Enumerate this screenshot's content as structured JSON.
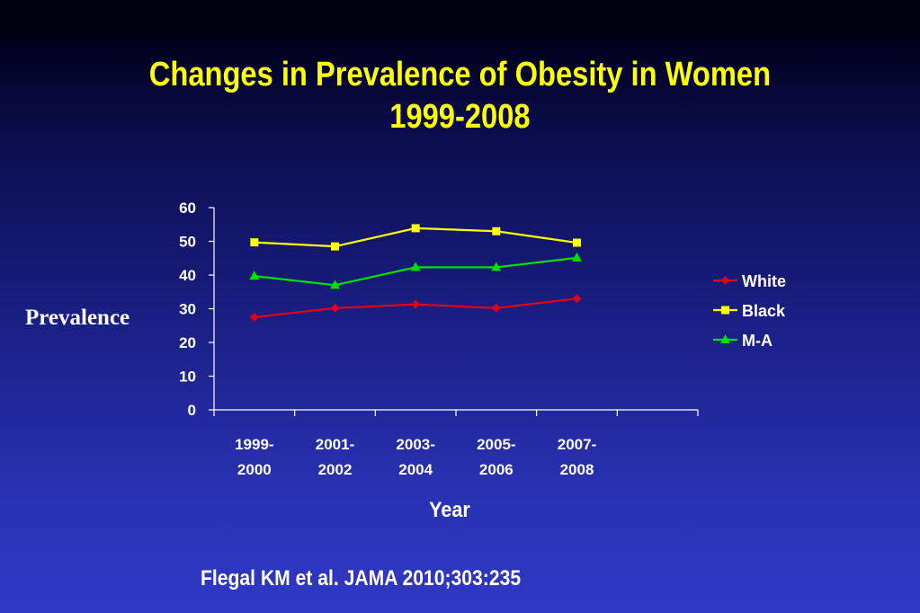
{
  "slide": {
    "title_line1": "Changes in Prevalence of Obesity in Women",
    "title_line2": "1999-2008",
    "citation": "Flegal KM et al. JAMA 2010;303:235"
  },
  "chart_data": {
    "type": "line",
    "title": "Changes in Prevalence of Obesity in Women 1999-2008",
    "xlabel": "Year",
    "ylabel": "Prevalence",
    "categories": [
      [
        "1999-",
        "2000"
      ],
      [
        "2001-",
        "2002"
      ],
      [
        "2003-",
        "2004"
      ],
      [
        "2005-",
        "2006"
      ],
      [
        "2007-",
        "2008"
      ]
    ],
    "ylim": [
      0,
      60
    ],
    "yticks": [
      0,
      10,
      20,
      30,
      40,
      50,
      60
    ],
    "grid": false,
    "legend_position": "right",
    "series": [
      {
        "name": "White",
        "color": "#e0001a",
        "marker": "diamond",
        "values": [
          27.5,
          30.2,
          31.3,
          30.2,
          33.0
        ]
      },
      {
        "name": "Black",
        "color": "#ffff00",
        "marker": "square",
        "values": [
          49.7,
          48.5,
          53.9,
          53.0,
          49.6
        ]
      },
      {
        "name": "M-A",
        "color": "#00e000",
        "marker": "triangle",
        "values": [
          39.7,
          37.0,
          42.3,
          42.3,
          45.1
        ]
      }
    ]
  }
}
